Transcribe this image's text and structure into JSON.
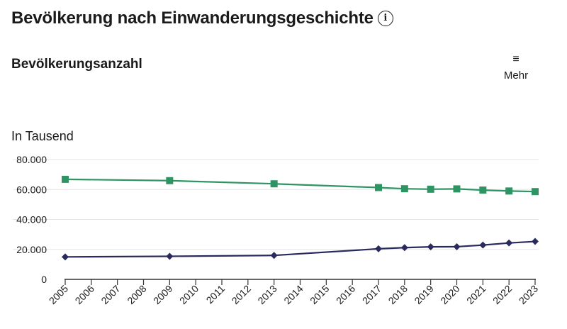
{
  "header": {
    "title": "Bevölkerung nach Einwanderungsgeschichte",
    "info_icon": "info-circle-icon"
  },
  "chart_header": {
    "title": "Bevölkerungsanzahl",
    "menu_icon": "hamburger-menu-icon",
    "menu_label": "Mehr"
  },
  "chart_data": {
    "type": "line",
    "title": "Bevölkerungsanzahl",
    "ylabel": "In Tausend",
    "xlabel": "",
    "ylim": [
      0,
      80000
    ],
    "yticks": [
      "0",
      "20.000",
      "40.000",
      "60.000",
      "80.000"
    ],
    "ytick_values": [
      0,
      20000,
      40000,
      60000,
      80000
    ],
    "x_categories": [
      "2005",
      "2006",
      "2007",
      "2008",
      "2009",
      "2010",
      "2011",
      "2012",
      "2013",
      "2014",
      "2015",
      "2016",
      "2017",
      "2018",
      "2019",
      "2020",
      "2021",
      "2022",
      "2023"
    ],
    "grid": true,
    "legend": "none",
    "series": [
      {
        "color": "#2e9463",
        "marker": "square",
        "x": [
          "2005",
          "2009",
          "2013",
          "2017",
          "2018",
          "2019",
          "2020",
          "2021",
          "2022",
          "2023"
        ],
        "values": [
          66800,
          65900,
          63800,
          61300,
          60500,
          60200,
          60400,
          59600,
          59000,
          58600
        ]
      },
      {
        "color": "#2b2a5c",
        "marker": "diamond",
        "x": [
          "2005",
          "2009",
          "2013",
          "2017",
          "2018",
          "2019",
          "2020",
          "2021",
          "2022",
          "2023"
        ],
        "values": [
          15000,
          15400,
          16000,
          20400,
          21200,
          21700,
          21800,
          22900,
          24300,
          25300
        ]
      }
    ]
  }
}
